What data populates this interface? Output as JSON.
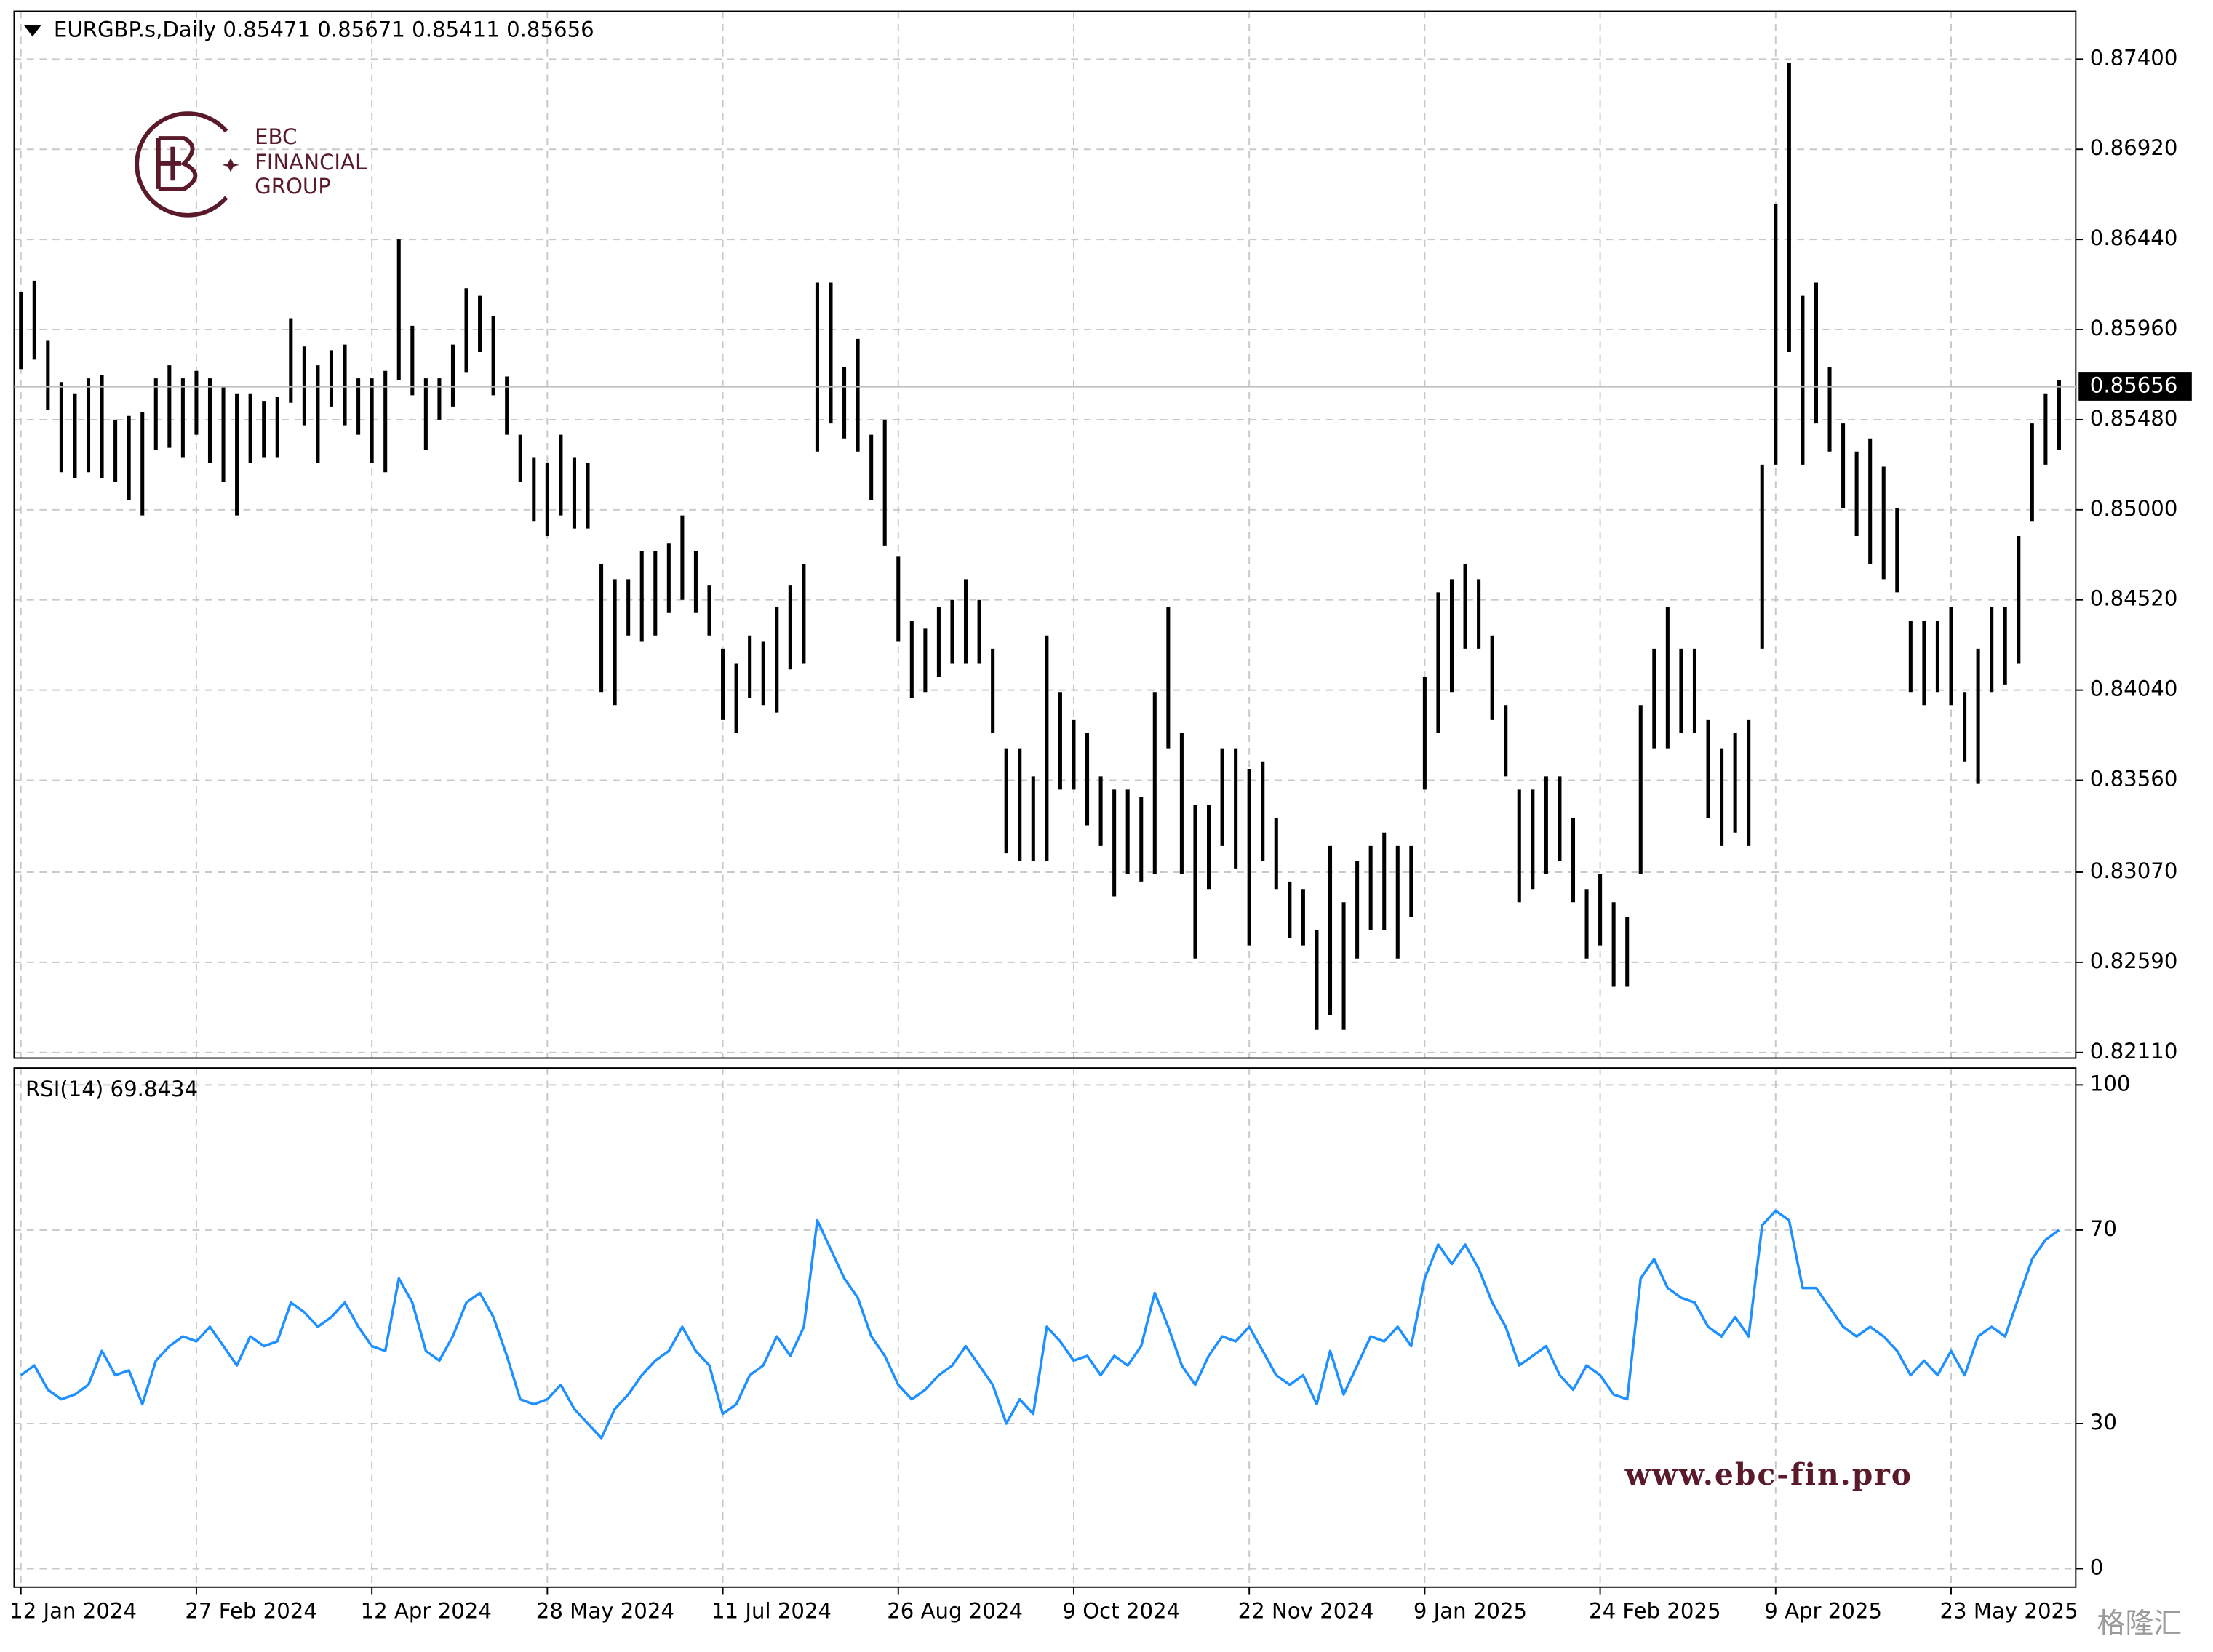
{
  "chart_data": [
    {
      "type": "ohlc",
      "title": "EURGBP.s,Daily  0.85471 0.85671 0.85411 0.85656",
      "color": "#000000",
      "grid": true,
      "last_price": 0.85656,
      "ylim": [
        0.8208,
        0.87655
      ],
      "yticks": [
        {
          "value": 0.874,
          "label": "0.87400"
        },
        {
          "value": 0.8692,
          "label": "0.86920"
        },
        {
          "value": 0.8644,
          "label": "0.86440"
        },
        {
          "value": 0.8596,
          "label": "0.85960"
        },
        {
          "value": 0.8548,
          "label": "0.85480"
        },
        {
          "value": 0.85,
          "label": "0.85000"
        },
        {
          "value": 0.8452,
          "label": "0.84520"
        },
        {
          "value": 0.8404,
          "label": "0.84040"
        },
        {
          "value": 0.8356,
          "label": "0.83560"
        },
        {
          "value": 0.8307,
          "label": "0.83070"
        },
        {
          "value": 0.8259,
          "label": "0.82590"
        },
        {
          "value": 0.8211,
          "label": "0.82110"
        }
      ],
      "categories": [
        "12 Jan 2024",
        null,
        null,
        null,
        null,
        null,
        null,
        null,
        null,
        null,
        null,
        null,
        null,
        "27 Feb 2024",
        null,
        null,
        null,
        null,
        null,
        null,
        null,
        null,
        null,
        null,
        null,
        null,
        "12 Apr 2024",
        null,
        null,
        null,
        null,
        null,
        null,
        null,
        null,
        null,
        null,
        null,
        null,
        "28 May 2024",
        null,
        null,
        null,
        null,
        null,
        null,
        null,
        null,
        null,
        null,
        null,
        null,
        "11 Jul 2024",
        null,
        null,
        null,
        null,
        null,
        null,
        null,
        null,
        null,
        null,
        null,
        null,
        "26 Aug 2024",
        null,
        null,
        null,
        null,
        null,
        null,
        null,
        null,
        null,
        null,
        null,
        null,
        "9 Oct 2024",
        null,
        null,
        null,
        null,
        null,
        null,
        null,
        null,
        null,
        null,
        null,
        null,
        "22 Nov 2024",
        null,
        null,
        null,
        null,
        null,
        null,
        null,
        null,
        null,
        null,
        null,
        null,
        "9 Jan 2025",
        null,
        null,
        null,
        null,
        null,
        null,
        null,
        null,
        null,
        null,
        null,
        null,
        "24 Feb 2025",
        null,
        null,
        null,
        null,
        null,
        null,
        null,
        null,
        null,
        null,
        null,
        null,
        "9 Apr 2025",
        null,
        null,
        null,
        null,
        null,
        null,
        null,
        null,
        null,
        null,
        null,
        null,
        "23 May 2025",
        null,
        null,
        null,
        null,
        null,
        null,
        null,
        null
      ],
      "high": [
        0.8616,
        0.8622,
        0.859,
        0.8568,
        0.8562,
        0.857,
        0.8572,
        0.8548,
        0.855,
        0.8552,
        0.857,
        0.8577,
        0.857,
        0.8574,
        0.857,
        0.8566,
        0.8562,
        0.8562,
        0.8558,
        0.856,
        0.8602,
        0.8587,
        0.8577,
        0.8585,
        0.8588,
        0.857,
        0.857,
        0.8574,
        0.8644,
        0.8598,
        0.857,
        0.857,
        0.8588,
        0.8618,
        0.8614,
        0.8603,
        0.8571,
        0.854,
        0.8528,
        0.8525,
        0.854,
        0.8528,
        0.8525,
        0.8471,
        0.8463,
        0.8463,
        0.8478,
        0.8478,
        0.8482,
        0.8497,
        0.8478,
        0.846,
        0.8426,
        0.8418,
        0.8433,
        0.843,
        0.8448,
        0.846,
        0.8471,
        0.8621,
        0.8621,
        0.8576,
        0.8591,
        0.854,
        0.8548,
        0.8475,
        0.8441,
        0.8437,
        0.8448,
        0.8452,
        0.8463,
        0.8452,
        0.8426,
        0.8373,
        0.8373,
        0.8358,
        0.8433,
        0.8403,
        0.8388,
        0.8381,
        0.8358,
        0.8351,
        0.8351,
        0.8347,
        0.8403,
        0.8448,
        0.8381,
        0.8343,
        0.8343,
        0.8373,
        0.8373,
        0.8362,
        0.8366,
        0.8336,
        0.8302,
        0.8298,
        0.8276,
        0.8321,
        0.8291,
        0.8313,
        0.8321,
        0.8328,
        0.8321,
        0.8321,
        0.8411,
        0.8456,
        0.8463,
        0.8471,
        0.8463,
        0.8433,
        0.8396,
        0.8351,
        0.8351,
        0.8358,
        0.8358,
        0.8336,
        0.8298,
        0.8306,
        0.8291,
        0.8283,
        0.8396,
        0.8426,
        0.8448,
        0.8426,
        0.8426,
        0.8388,
        0.8373,
        0.8381,
        0.8388,
        0.8524,
        0.8663,
        0.8738,
        0.8614,
        0.8621,
        0.8576,
        0.8546,
        0.8531,
        0.8538,
        0.8523,
        0.8501,
        0.8441,
        0.8441,
        0.8441,
        0.8448,
        0.8403,
        0.8426,
        0.8448,
        0.8448,
        0.8486,
        0.8546,
        0.8562,
        0.8569
      ],
      "low": [
        0.8575,
        0.858,
        0.8553,
        0.852,
        0.8517,
        0.852,
        0.8517,
        0.8515,
        0.8505,
        0.8497,
        0.8532,
        0.8533,
        0.8528,
        0.854,
        0.8525,
        0.8515,
        0.8497,
        0.8525,
        0.8528,
        0.8528,
        0.8557,
        0.8545,
        0.8525,
        0.8555,
        0.8545,
        0.854,
        0.8525,
        0.852,
        0.8569,
        0.8561,
        0.8532,
        0.8548,
        0.8555,
        0.8573,
        0.8584,
        0.8561,
        0.854,
        0.8515,
        0.8494,
        0.8486,
        0.8497,
        0.849,
        0.849,
        0.8403,
        0.8396,
        0.8433,
        0.843,
        0.8433,
        0.8445,
        0.8452,
        0.8445,
        0.8433,
        0.8388,
        0.8381,
        0.84,
        0.8396,
        0.8392,
        0.8415,
        0.8418,
        0.8531,
        0.8546,
        0.8538,
        0.8531,
        0.8505,
        0.8481,
        0.843,
        0.84,
        0.8403,
        0.8411,
        0.8418,
        0.8418,
        0.8418,
        0.8381,
        0.8317,
        0.8313,
        0.8313,
        0.8313,
        0.8351,
        0.8351,
        0.8332,
        0.8321,
        0.8294,
        0.8306,
        0.8302,
        0.8306,
        0.8373,
        0.8306,
        0.8261,
        0.8298,
        0.8321,
        0.8309,
        0.8268,
        0.8313,
        0.8298,
        0.8272,
        0.8268,
        0.8223,
        0.8231,
        0.8223,
        0.8261,
        0.8276,
        0.8276,
        0.8261,
        0.8283,
        0.8351,
        0.8381,
        0.8403,
        0.8426,
        0.8426,
        0.8388,
        0.8358,
        0.8291,
        0.8298,
        0.8306,
        0.8313,
        0.8291,
        0.8261,
        0.8268,
        0.8246,
        0.8246,
        0.8306,
        0.8373,
        0.8373,
        0.8381,
        0.8381,
        0.8336,
        0.8321,
        0.8328,
        0.8321,
        0.8426,
        0.8524,
        0.8584,
        0.8524,
        0.8546,
        0.8531,
        0.8501,
        0.8486,
        0.8471,
        0.8463,
        0.8456,
        0.8403,
        0.8396,
        0.8403,
        0.8396,
        0.8366,
        0.8354,
        0.8403,
        0.8407,
        0.8418,
        0.8494,
        0.8524,
        0.8532
      ]
    },
    {
      "type": "line",
      "title": "RSI(14) 69.8434",
      "color": "#1e90ff",
      "grid": true,
      "ylim": [
        -3.8,
        103.5
      ],
      "yticks": [
        0,
        30,
        70,
        100
      ],
      "values": [
        40,
        42,
        37,
        35,
        36,
        38,
        45,
        40,
        41,
        34,
        43,
        46,
        48,
        47,
        50,
        46,
        42,
        48,
        46,
        47,
        55,
        53,
        50,
        52,
        55,
        50,
        46,
        45,
        60,
        55,
        45,
        43,
        48,
        55,
        57,
        52,
        44,
        35,
        34,
        35,
        38,
        33,
        30,
        27,
        33,
        36,
        40,
        43,
        45,
        50,
        45,
        42,
        32,
        34,
        40,
        42,
        48,
        44,
        50,
        72,
        66,
        60,
        56,
        48,
        44,
        38,
        35,
        37,
        40,
        42,
        46,
        42,
        38,
        30,
        35,
        32,
        50,
        47,
        43,
        44,
        40,
        44,
        42,
        46,
        57,
        50,
        42,
        38,
        44,
        48,
        47,
        50,
        45,
        40,
        38,
        40,
        34,
        45,
        36,
        42,
        48,
        47,
        50,
        46,
        60,
        67,
        63,
        67,
        62,
        55,
        50,
        42,
        44,
        46,
        40,
        37,
        42,
        40,
        36,
        35,
        60,
        64,
        58,
        56,
        55,
        50,
        48,
        52,
        48,
        71,
        74,
        72,
        58,
        58,
        54,
        50,
        48,
        50,
        48,
        45,
        40,
        43,
        40,
        45,
        40,
        48,
        50,
        48,
        56,
        64,
        68,
        70
      ]
    }
  ],
  "branding": {
    "logo_lines": [
      "EBC",
      "FINANCIAL",
      "GROUP"
    ],
    "website": "www.ebc-fin.pro",
    "source": "格隆汇"
  }
}
